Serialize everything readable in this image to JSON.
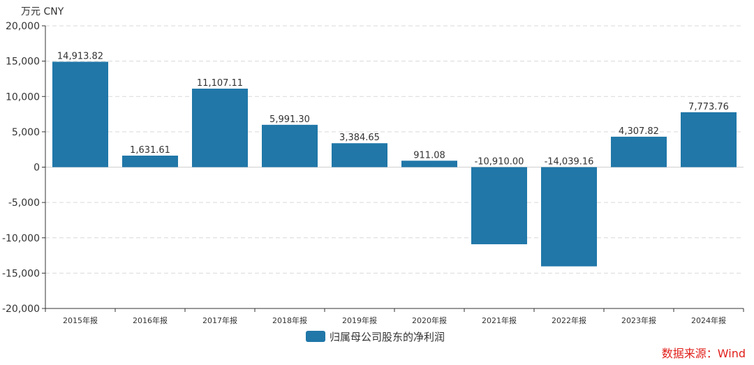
{
  "chart_data": {
    "type": "bar",
    "unit_label": "万元  CNY",
    "categories": [
      "2015年报",
      "2016年报",
      "2017年报",
      "2018年报",
      "2019年报",
      "2020年报",
      "2021年报",
      "2022年报",
      "2023年报",
      "2024年报"
    ],
    "series": [
      {
        "name": "归属母公司股东的净利润",
        "values": [
          14913.82,
          1631.61,
          11107.11,
          5991.3,
          3384.65,
          911.08,
          -10910.0,
          -14039.16,
          4307.82,
          7773.76
        ],
        "value_labels": [
          "14,913.82",
          "1,631.61",
          "11,107.11",
          "5,991.30",
          "3,384.65",
          "911.08",
          "-10,910.00",
          "-14,039.16",
          "4,307.82",
          "7,773.76"
        ],
        "color": "#2077a8"
      }
    ],
    "yticks": [
      20000,
      15000,
      10000,
      5000,
      0,
      -5000,
      -10000,
      -15000,
      -20000
    ],
    "ytick_labels": [
      "20,000",
      "15,000",
      "10,000",
      "5,000",
      "0",
      "-5,000",
      "-10,000",
      "-15,000",
      "-20,000"
    ],
    "ylim": [
      -20000,
      20000
    ],
    "grid": true,
    "legend_position": "bottom-center",
    "source": "数据来源：Wind"
  }
}
